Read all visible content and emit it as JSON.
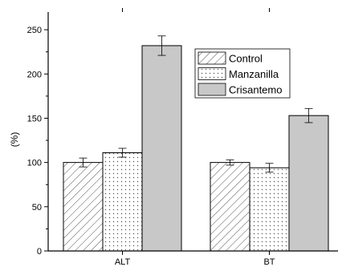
{
  "chart_data": {
    "type": "bar",
    "categories": [
      "ALT",
      "BT"
    ],
    "series": [
      {
        "name": "Control",
        "values": [
          100,
          100
        ],
        "errors": [
          5,
          3
        ],
        "pattern": "hatch"
      },
      {
        "name": "Manzanilla",
        "values": [
          111,
          94
        ],
        "errors": [
          5,
          5
        ],
        "pattern": "dots"
      },
      {
        "name": "Crisantemo",
        "values": [
          232,
          153
        ],
        "errors": [
          11,
          8
        ],
        "pattern": "solid",
        "color": "#c8c8c8"
      }
    ],
    "title": "",
    "xlabel": "",
    "ylabel": "(%)",
    "ylim": [
      0,
      270
    ],
    "yticks": [
      0,
      50,
      100,
      150,
      200,
      250
    ],
    "grid": false,
    "legend_position": "top-right"
  }
}
